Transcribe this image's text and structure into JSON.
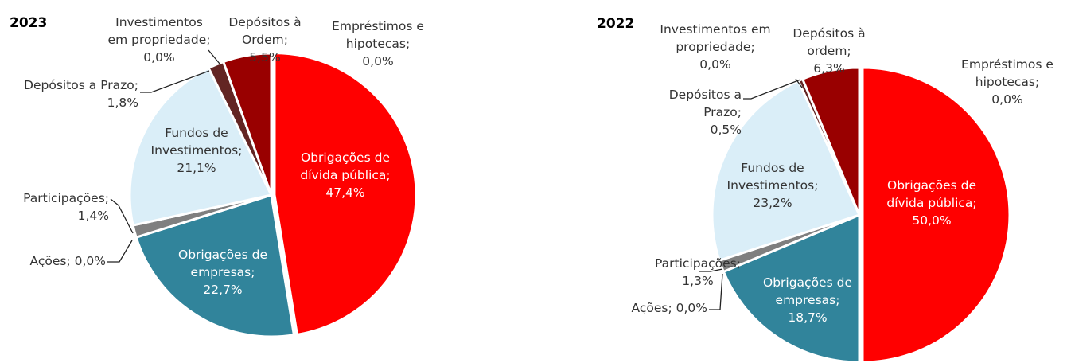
{
  "chart_data": [
    {
      "type": "pie",
      "title": "2023",
      "slices": [
        {
          "label": "Obrigações de dívida pública;",
          "value_label": "47,4%",
          "value": 47.4,
          "color": "#ff0000",
          "text_color": "#ffffff"
        },
        {
          "label": "Obrigações de empresas;",
          "value_label": "22,7%",
          "value": 22.7,
          "color": "#31849b",
          "text_color": "#ffffff"
        },
        {
          "label": "Ações;",
          "value_label": "0,0%",
          "value": 0.0,
          "color": "#595959",
          "text_color": "#333333"
        },
        {
          "label": "Participações;",
          "value_label": "1,4%",
          "value": 1.4,
          "color": "#7f7f7f",
          "text_color": "#333333"
        },
        {
          "label": "Fundos de Investimentos;",
          "value_label": "21,1%",
          "value": 21.1,
          "color": "#daeef8",
          "text_color": "#333333"
        },
        {
          "label": "Depósitos a Prazo;",
          "value_label": "1,8%",
          "value": 1.8,
          "color": "#632523",
          "text_color": "#333333"
        },
        {
          "label": "Investimentos em propriedade;",
          "value_label": "0,0%",
          "value": 0.0,
          "color": "#7f7f7f",
          "text_color": "#333333"
        },
        {
          "label": "Depósitos à Ordem;",
          "value_label": "5,5%",
          "value": 5.5,
          "color": "#990000",
          "text_color": "#333333"
        },
        {
          "label": "Empréstimos e hipotecas;",
          "value_label": "0,0%",
          "value": 0.0,
          "color": "#c00000",
          "text_color": "#333333"
        }
      ]
    },
    {
      "type": "pie",
      "title": "2022",
      "slices": [
        {
          "label": "Obrigações de dívida pública;",
          "value_label": "50,0%",
          "value": 50.0,
          "color": "#ff0000",
          "text_color": "#ffffff"
        },
        {
          "label": "Obrigações de empresas;",
          "value_label": "18,7%",
          "value": 18.7,
          "color": "#31849b",
          "text_color": "#ffffff"
        },
        {
          "label": "Ações;",
          "value_label": "0,0%",
          "value": 0.0,
          "color": "#595959",
          "text_color": "#333333"
        },
        {
          "label": "Participações;",
          "value_label": "1,3%",
          "value": 1.3,
          "color": "#7f7f7f",
          "text_color": "#333333"
        },
        {
          "label": "Fundos de Investimentos;",
          "value_label": "23,2%",
          "value": 23.2,
          "color": "#daeef8",
          "text_color": "#333333"
        },
        {
          "label": "Depósitos a Prazo;",
          "value_label": "0,5%",
          "value": 0.5,
          "color": "#632523",
          "text_color": "#333333"
        },
        {
          "label": "Investimentos em propriedade;",
          "value_label": "0,0%",
          "value": 0.0,
          "color": "#7f7f7f",
          "text_color": "#333333"
        },
        {
          "label": "Depósitos à ordem;",
          "value_label": "6,3%",
          "value": 6.3,
          "color": "#990000",
          "text_color": "#333333"
        },
        {
          "label": "Empréstimos e hipotecas;",
          "value_label": "0,0%",
          "value": 0.0,
          "color": "#c00000",
          "text_color": "#333333"
        }
      ]
    }
  ]
}
